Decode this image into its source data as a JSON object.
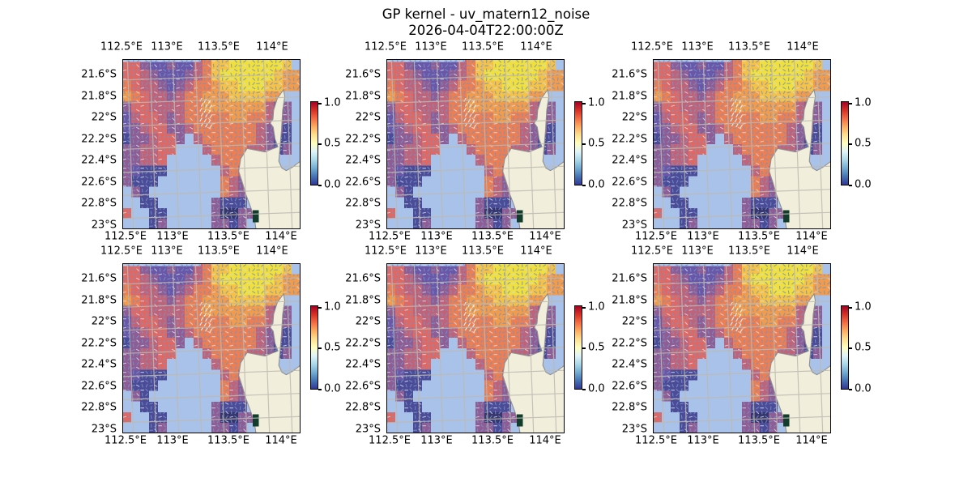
{
  "figure": {
    "title": "GP kernel - uv_matern12_noise",
    "subtitle": "2026-04-04T22:00:00Z",
    "background": "#ffffff"
  },
  "chart_data": {
    "type": "heatmap",
    "title": "GP kernel - uv_matern12_noise",
    "subtitle": "2026-04-04T22:00:00Z",
    "grid_layout": {
      "rows": 2,
      "cols": 3,
      "panels": [
        "r1c1",
        "r1c2",
        "r1c3",
        "r2c1",
        "r2c2",
        "r2c3"
      ],
      "note": "six identical geographic map panels, each with its own colorbar"
    },
    "x_ticks": [
      "112.5°E",
      "113°E",
      "113.5°E",
      "114°E"
    ],
    "y_ticks": [
      "21.6°S",
      "21.8°S",
      "22°S",
      "22.2°S",
      "22.4°S",
      "22.6°S",
      "22.8°S",
      "23°S"
    ],
    "x_tick_positions_lon": [
      112.5,
      113.0,
      113.5,
      114.0
    ],
    "y_tick_positions_lat": [
      -21.6,
      -21.8,
      -22.0,
      -22.2,
      -22.4,
      -22.6,
      -22.8,
      -23.0
    ],
    "lon_range": [
      112.45,
      114.3
    ],
    "lat_range": [
      -23.06,
      -21.45
    ],
    "grid_on": true,
    "colorbar": {
      "ticks": [
        "1.0",
        "0.5",
        "0.0"
      ],
      "vmin": 0.0,
      "vmax": 1.0,
      "orientation": "vertical",
      "position": "right of each panel",
      "gradient_top_to_bottom": [
        "#a50026",
        "#d73027",
        "#f46d43",
        "#fdae61",
        "#fee090",
        "#ffffbf",
        "#e0f3f8",
        "#abd9e9",
        "#74add1",
        "#4575b4",
        "#313695"
      ]
    },
    "map": {
      "ocean_color": "#a9c2e9",
      "land_color": "#f1efdc",
      "coast_color": "#8f8f8f",
      "graticule_color": "#beb9b0",
      "quiver_color": "#6f94c6",
      "quiver_light_color": "#cddcf0",
      "quiver_white_color": "#fbfbf2",
      "station_marker_color": "#123c2c",
      "region": "North West Cape / Exmouth Gulf, Western Australia"
    },
    "heatmap": {
      "columns": 20,
      "rows": 16,
      "palette": {
        "Y": "#f1df3b",
        "y": "#f6c245",
        "o": "#f29b4a",
        "O": "#ec7e52",
        "r": "#e16862",
        "m": "#c16378",
        "p": "#8f5c94",
        "P": "#6a57a8",
        "b": "#4c4b97",
        "N": "#37356e",
        ".": "#a9c2e9"
      },
      "legend": "characters index the palette; '.' = masked (no data, ocean shows through)",
      "cells": [
        "rrpPPpPPmOyyYYYYYYy.",
        "rrmpPPPpmOyYYYYYYyoo",
        "OrmmpPpmOOoyyYYYyyoo",
        "oOrmmpmOOoooyyyyoo..",
        "prrmmmmOOooooooompp.",
        "PmrrmpmOOOOOooOOmpp.",
        "PpmrrppmOOOOOOOmppb.",
        "bppmrrp.mOOOOOOmpbb.",
        "ppmmrr...mOOOOmmpbp.",
        "ppmmr.....mOOOmpb...",
        "pPbbb......mOmmpb...",
        "pbbb.......Ompb.....",
        ".pb........Omp......",
        "..bb......pbbb......",
        "r..bb.....pNNpp.....",
        "...bp.....ppbp......"
      ]
    }
  }
}
